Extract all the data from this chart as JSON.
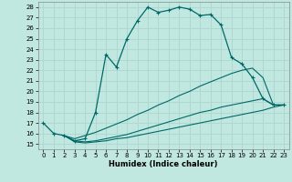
{
  "xlabel": "Humidex (Indice chaleur)",
  "xlim": [
    -0.5,
    23.5
  ],
  "ylim": [
    14.5,
    28.5
  ],
  "xticks": [
    0,
    1,
    2,
    3,
    4,
    5,
    6,
    7,
    8,
    9,
    10,
    11,
    12,
    13,
    14,
    15,
    16,
    17,
    18,
    19,
    20,
    21,
    22,
    23
  ],
  "yticks": [
    15,
    16,
    17,
    18,
    19,
    20,
    21,
    22,
    23,
    24,
    25,
    26,
    27,
    28
  ],
  "bg_color": "#c0e8e0",
  "line_color": "#006868",
  "grid_color": "#b0d8d0",
  "lines": [
    {
      "x": [
        0,
        1,
        2,
        3,
        4,
        5,
        6,
        7,
        8,
        9,
        10,
        11,
        12,
        13,
        14,
        15,
        16,
        17,
        18,
        19,
        20,
        21,
        22,
        23
      ],
      "y": [
        17.0,
        16.0,
        15.8,
        15.3,
        15.5,
        18.0,
        23.5,
        22.3,
        25.0,
        26.7,
        28.0,
        27.5,
        27.7,
        28.0,
        27.8,
        27.2,
        27.3,
        26.3,
        23.2,
        22.6,
        21.3,
        19.3,
        18.7,
        18.7
      ],
      "marker": true
    },
    {
      "x": [
        2,
        3,
        4,
        5,
        6,
        7,
        8,
        9,
        10,
        11,
        12,
        13,
        14,
        15,
        16,
        17,
        18,
        19,
        20,
        21,
        22,
        23
      ],
      "y": [
        15.8,
        15.5,
        15.8,
        16.1,
        16.5,
        16.9,
        17.3,
        17.8,
        18.2,
        18.7,
        19.1,
        19.6,
        20.0,
        20.5,
        20.9,
        21.3,
        21.7,
        22.0,
        22.2,
        21.3,
        18.7,
        18.7
      ],
      "marker": false
    },
    {
      "x": [
        2,
        3,
        4,
        5,
        6,
        7,
        8,
        9,
        10,
        11,
        12,
        13,
        14,
        15,
        16,
        17,
        18,
        19,
        20,
        21,
        22,
        23
      ],
      "y": [
        15.8,
        15.3,
        15.2,
        15.3,
        15.5,
        15.7,
        15.9,
        16.2,
        16.5,
        16.8,
        17.1,
        17.4,
        17.7,
        18.0,
        18.2,
        18.5,
        18.7,
        18.9,
        19.1,
        19.3,
        18.7,
        18.7
      ],
      "marker": false
    },
    {
      "x": [
        2,
        3,
        4,
        5,
        6,
        7,
        8,
        9,
        10,
        11,
        12,
        13,
        14,
        15,
        16,
        17,
        18,
        19,
        20,
        21,
        22,
        23
      ],
      "y": [
        15.8,
        15.2,
        15.1,
        15.2,
        15.3,
        15.5,
        15.6,
        15.8,
        16.0,
        16.2,
        16.4,
        16.6,
        16.8,
        17.0,
        17.2,
        17.4,
        17.6,
        17.8,
        18.0,
        18.2,
        18.5,
        18.7
      ],
      "marker": false
    }
  ]
}
